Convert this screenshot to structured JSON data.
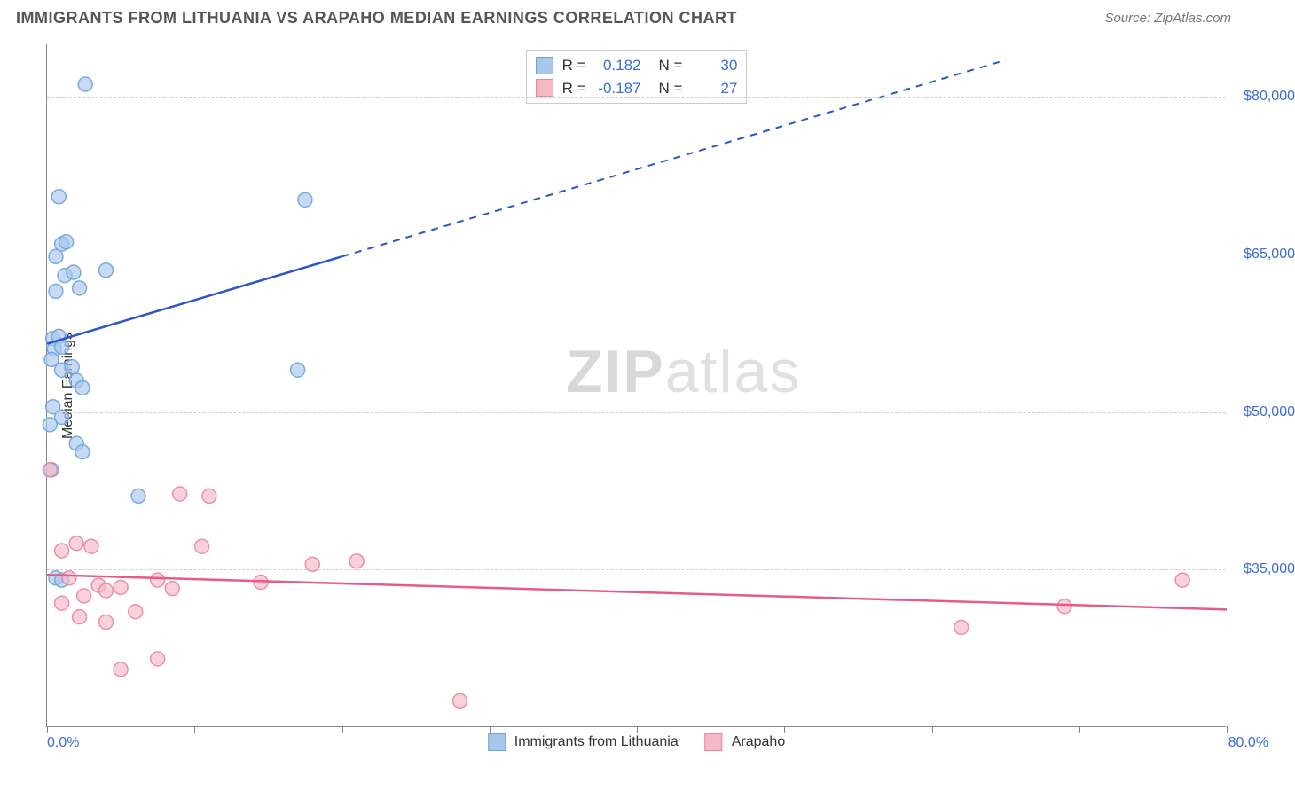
{
  "header": {
    "title": "IMMIGRANTS FROM LITHUANIA VS ARAPAHO MEDIAN EARNINGS CORRELATION CHART",
    "source": "Source: ZipAtlas.com"
  },
  "chart": {
    "type": "scatter",
    "y_axis_label": "Median Earnings",
    "x_min_label": "0.0%",
    "x_max_label": "80.0%",
    "background_color": "#ffffff",
    "grid_color": "#cccccc",
    "axis_color": "#888888",
    "y_ticks": [
      {
        "value": 35000,
        "label": "$35,000"
      },
      {
        "value": 50000,
        "label": "$50,000"
      },
      {
        "value": 65000,
        "label": "$65,000"
      },
      {
        "value": 80000,
        "label": "$80,000"
      }
    ],
    "x_ticks_pct": [
      0,
      10,
      20,
      30,
      40,
      50,
      60,
      70,
      80
    ],
    "xlim": [
      0,
      80
    ],
    "ylim": [
      20000,
      85000
    ],
    "watermark": "ZIPatlas",
    "series": [
      {
        "id": "lithuania",
        "name": "Immigrants from Lithuania",
        "color_fill": "#a8c7ec",
        "color_stroke": "#6fa3dc",
        "trend_color": "#2a56c6",
        "marker_radius": 8,
        "marker_opacity": 0.65,
        "R": "0.182",
        "N": "30",
        "trend": {
          "x1": 0,
          "y1": 56500,
          "x2_solid": 20,
          "y2_solid": 64800,
          "x2_dash": 65,
          "y2_dash": 83500
        },
        "points": [
          [
            2.6,
            81200
          ],
          [
            0.8,
            70500
          ],
          [
            1.0,
            66000
          ],
          [
            1.3,
            66200
          ],
          [
            0.6,
            64800
          ],
          [
            1.2,
            63000
          ],
          [
            1.8,
            63300
          ],
          [
            4.0,
            63500
          ],
          [
            0.6,
            61500
          ],
          [
            2.2,
            61800
          ],
          [
            0.4,
            57000
          ],
          [
            0.8,
            57200
          ],
          [
            0.5,
            56000
          ],
          [
            1.0,
            56200
          ],
          [
            0.3,
            55000
          ],
          [
            1.0,
            54000
          ],
          [
            1.7,
            54300
          ],
          [
            2.0,
            53000
          ],
          [
            2.4,
            52300
          ],
          [
            0.4,
            50500
          ],
          [
            1.0,
            49500
          ],
          [
            0.2,
            48800
          ],
          [
            2.0,
            47000
          ],
          [
            2.4,
            46200
          ],
          [
            0.3,
            44500
          ],
          [
            6.2,
            42000
          ],
          [
            0.6,
            34200
          ],
          [
            1.0,
            34000
          ],
          [
            17.5,
            70200
          ],
          [
            17.0,
            54000
          ]
        ]
      },
      {
        "id": "arapaho",
        "name": "Arapaho",
        "color_fill": "#f4b8c8",
        "color_stroke": "#e886a4",
        "trend_color": "#e75a8a",
        "marker_radius": 8,
        "marker_opacity": 0.65,
        "R": "-0.187",
        "N": "27",
        "trend": {
          "x1": 0,
          "y1": 34500,
          "x2_solid": 80,
          "y2_solid": 31200,
          "x2_dash": 80,
          "y2_dash": 31200
        },
        "points": [
          [
            0.2,
            44500
          ],
          [
            2.0,
            37500
          ],
          [
            3.0,
            37200
          ],
          [
            9.0,
            42200
          ],
          [
            11.0,
            42000
          ],
          [
            3.5,
            33500
          ],
          [
            1.0,
            36800
          ],
          [
            10.5,
            37200
          ],
          [
            4.0,
            33000
          ],
          [
            5.0,
            33300
          ],
          [
            1.5,
            34200
          ],
          [
            2.5,
            32500
          ],
          [
            7.5,
            34000
          ],
          [
            8.5,
            33200
          ],
          [
            6.0,
            31000
          ],
          [
            1.0,
            31800
          ],
          [
            2.2,
            30500
          ],
          [
            4.0,
            30000
          ],
          [
            14.5,
            33800
          ],
          [
            18.0,
            35500
          ],
          [
            21.0,
            35800
          ],
          [
            5.0,
            25500
          ],
          [
            7.5,
            26500
          ],
          [
            28.0,
            22500
          ],
          [
            62.0,
            29500
          ],
          [
            69.0,
            31500
          ],
          [
            77.0,
            34000
          ]
        ]
      }
    ],
    "legend_top": {
      "rows": [
        {
          "swatch_fill": "#a8c7ec",
          "swatch_stroke": "#6fa3dc",
          "R_label": "R =",
          "R_val": "0.182",
          "N_label": "N =",
          "N_val": "30"
        },
        {
          "swatch_fill": "#f4b8c8",
          "swatch_stroke": "#e886a4",
          "R_label": "R =",
          "R_val": "-0.187",
          "N_label": "N =",
          "N_val": "27"
        }
      ]
    },
    "legend_bottom": [
      {
        "swatch_fill": "#a8c7ec",
        "swatch_stroke": "#6fa3dc",
        "label": "Immigrants from Lithuania"
      },
      {
        "swatch_fill": "#f4b8c8",
        "swatch_stroke": "#e886a4",
        "label": "Arapaho"
      }
    ]
  }
}
